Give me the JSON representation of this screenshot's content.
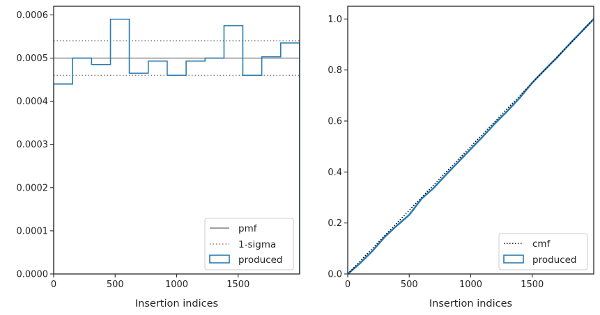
{
  "chart_data": [
    {
      "type": "step",
      "xlabel": "Insertion indices",
      "ylabel": "",
      "xlim": [
        0,
        2000
      ],
      "ylim": [
        0,
        0.00062
      ],
      "xticks": [
        0,
        500,
        1000,
        1500
      ],
      "xtick_labels": [
        "0",
        "500",
        "1000",
        "1500"
      ],
      "yticks": [
        0,
        0.0001,
        0.0002,
        0.0003,
        0.0004,
        0.0005,
        0.0006
      ],
      "ytick_labels": [
        "0.0000",
        "0.0001",
        "0.0002",
        "0.0003",
        "0.0004",
        "0.0005",
        "0.0006"
      ],
      "legend_position": "lower-right",
      "pmf": {
        "name": "pmf",
        "value": 0.0005,
        "color": "#808080"
      },
      "sigma": {
        "name": "1-sigma",
        "values": [
          0.00046,
          0.00054
        ],
        "color": "#808080"
      },
      "series": [
        {
          "name": "produced",
          "color": "#2b7bb0",
          "bin_edges": [
            0,
            154,
            308,
            462,
            615,
            769,
            923,
            1077,
            1231,
            1385,
            1538,
            1692,
            1846,
            2000
          ],
          "values": [
            0.00044,
            0.0005,
            0.000485,
            0.00059,
            0.000465,
            0.000493,
            0.00046,
            0.000493,
            0.0005,
            0.000575,
            0.00046,
            0.000503,
            0.000535
          ]
        }
      ]
    },
    {
      "type": "line",
      "xlabel": "Insertion indices",
      "ylabel": "",
      "xlim": [
        0,
        2000
      ],
      "ylim": [
        0,
        1.05
      ],
      "xticks": [
        0,
        500,
        1000,
        1500
      ],
      "xtick_labels": [
        "0",
        "500",
        "1000",
        "1500"
      ],
      "yticks": [
        0,
        0.2,
        0.4,
        0.6,
        0.8,
        1.0
      ],
      "ytick_labels": [
        "0.0",
        "0.2",
        "0.4",
        "0.6",
        "0.8",
        "1.0"
      ],
      "legend_position": "lower-right",
      "series": [
        {
          "name": "cmf",
          "x": [
            0,
            2000
          ],
          "y": [
            0,
            1.0
          ],
          "color": "#000000"
        },
        {
          "name": "produced",
          "color": "#2b7bb0",
          "x": [
            0,
            100,
            200,
            300,
            400,
            500,
            600,
            700,
            800,
            900,
            1000,
            1100,
            1200,
            1300,
            1400,
            1500,
            1600,
            1700,
            1800,
            1900,
            2000
          ],
          "y": [
            0,
            0.042,
            0.09,
            0.145,
            0.19,
            0.232,
            0.295,
            0.338,
            0.39,
            0.44,
            0.49,
            0.54,
            0.592,
            0.64,
            0.692,
            0.75,
            0.8,
            0.848,
            0.9,
            0.95,
            1.0
          ]
        }
      ]
    }
  ]
}
